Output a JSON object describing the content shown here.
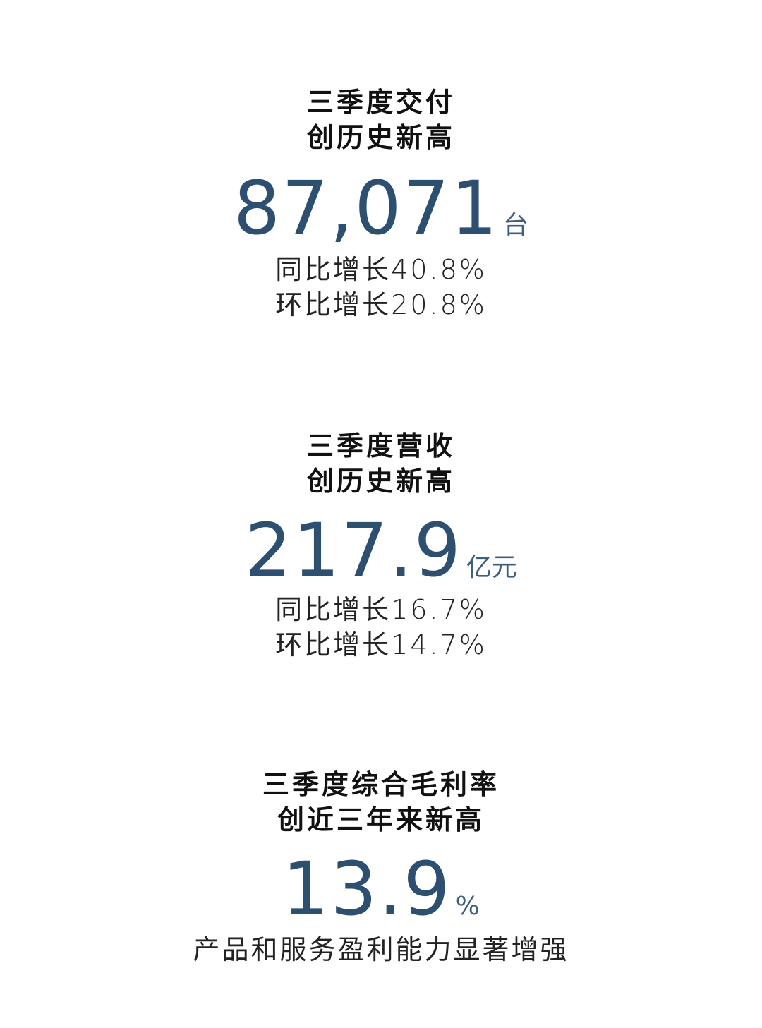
{
  "accent_color": "#2d4f70",
  "sections": [
    {
      "title_lines": [
        "三季度交付",
        "创历史新高"
      ],
      "value": "87,071",
      "unit": "台",
      "details": [
        "同比增长40.8%",
        "环比增长20.8%"
      ]
    },
    {
      "title_lines": [
        "三季度营收",
        "创历史新高"
      ],
      "value": "217.9",
      "unit": "亿元",
      "details": [
        "同比增长16.7%",
        "环比增长14.7%"
      ]
    },
    {
      "title_lines": [
        "三季度综合毛利率",
        "创近三年来新高"
      ],
      "value": "13.9",
      "unit": "%",
      "details": [
        "产品和服务盈利能力显著增强"
      ]
    }
  ]
}
